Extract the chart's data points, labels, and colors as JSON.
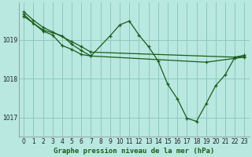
{
  "title": "Graphe pression niveau de la mer (hPa)",
  "bg_color": "#b8e8e0",
  "grid_color": "#90c8c0",
  "line_color": "#1a5c1a",
  "xlim": [
    -0.5,
    23.5
  ],
  "ylim": [
    1016.5,
    1019.95
  ],
  "yticks": [
    1017,
    1018,
    1019
  ],
  "xticks": [
    0,
    1,
    2,
    3,
    4,
    5,
    6,
    7,
    8,
    9,
    10,
    11,
    12,
    13,
    14,
    15,
    16,
    17,
    18,
    19,
    20,
    21,
    22,
    23
  ],
  "line1_x": [
    0,
    1,
    2,
    3,
    5,
    6,
    7,
    22,
    23
  ],
  "line1_y": [
    1019.72,
    1019.5,
    1019.32,
    1019.2,
    1018.95,
    1018.82,
    1018.68,
    1018.55,
    1018.57
  ],
  "line2_x": [
    0,
    2,
    4,
    5,
    6,
    7,
    19,
    22,
    23
  ],
  "line2_y": [
    1019.6,
    1019.25,
    1019.1,
    1018.88,
    1018.72,
    1018.58,
    1018.42,
    1018.52,
    1018.55
  ],
  "line3_x": [
    0,
    1,
    2,
    3,
    4,
    5,
    6,
    7,
    9,
    10,
    11,
    12,
    13,
    14,
    15,
    16,
    17,
    18,
    19,
    20,
    21,
    22,
    23
  ],
  "line3_y": [
    1019.65,
    1019.42,
    1019.22,
    1019.12,
    1018.85,
    1018.75,
    1018.62,
    1018.58,
    1019.1,
    1019.38,
    1019.48,
    1019.12,
    1018.82,
    1018.45,
    1017.85,
    1017.48,
    1016.98,
    1016.9,
    1017.35,
    1017.82,
    1018.1,
    1018.55,
    1018.6
  ],
  "tick_fontsize": 5.5,
  "xlabel_fontsize": 6.5
}
